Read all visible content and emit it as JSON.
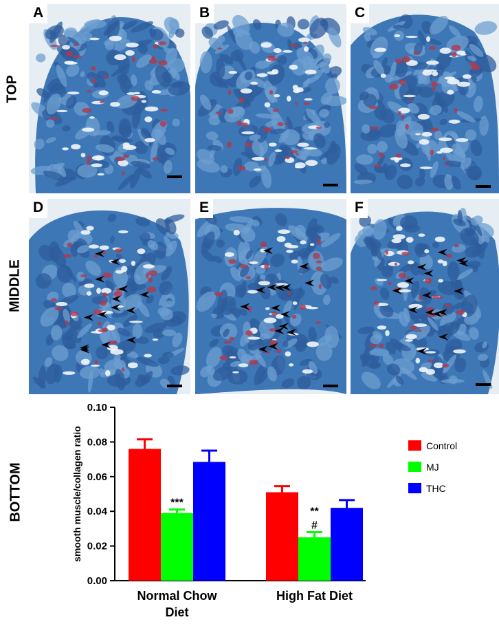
{
  "rows": {
    "top": "TOP",
    "middle": "MIDDLE",
    "bottom": "BOTTOM"
  },
  "panels": [
    {
      "letter": "A",
      "row": "top",
      "arrowheads": 0
    },
    {
      "letter": "B",
      "row": "top",
      "arrowheads": 0
    },
    {
      "letter": "C",
      "row": "top",
      "arrowheads": 0
    },
    {
      "letter": "D",
      "row": "middle",
      "arrowheads": 14
    },
    {
      "letter": "E",
      "row": "middle",
      "arrowheads": 15
    },
    {
      "letter": "F",
      "row": "middle",
      "arrowheads": 15
    }
  ],
  "colors": {
    "tissue_blue": "#3e77b6",
    "collagen_red": "#b0384c",
    "background": "#ffffff"
  },
  "chart_data": {
    "type": "bar",
    "categories": [
      "Normal Chow\nDiet",
      "High Fat Diet"
    ],
    "ylabel": "smooth muscle/collagen ratio",
    "xlabel": "",
    "ylim": [
      0,
      0.1
    ],
    "yticks": [
      "0.00",
      "0.02",
      "0.04",
      "0.06",
      "0.08",
      "0.10"
    ],
    "series": [
      {
        "name": "Control",
        "color": "#ff0000",
        "values": [
          0.076,
          0.051
        ],
        "errors": [
          0.0055,
          0.0035
        ]
      },
      {
        "name": "MJ",
        "color": "#00ff00",
        "values": [
          0.039,
          0.025
        ],
        "errors": [
          0.002,
          0.003
        ]
      },
      {
        "name": "THC",
        "color": "#0000ff",
        "values": [
          0.0685,
          0.042
        ],
        "errors": [
          0.0065,
          0.0045
        ]
      }
    ],
    "annotations": [
      {
        "category": 0,
        "series": 1,
        "text": "***"
      },
      {
        "category": 1,
        "series": 1,
        "text": "**"
      },
      {
        "category": 1,
        "series": 1,
        "text": "#"
      }
    ],
    "legend_position": "right",
    "grid": false
  }
}
